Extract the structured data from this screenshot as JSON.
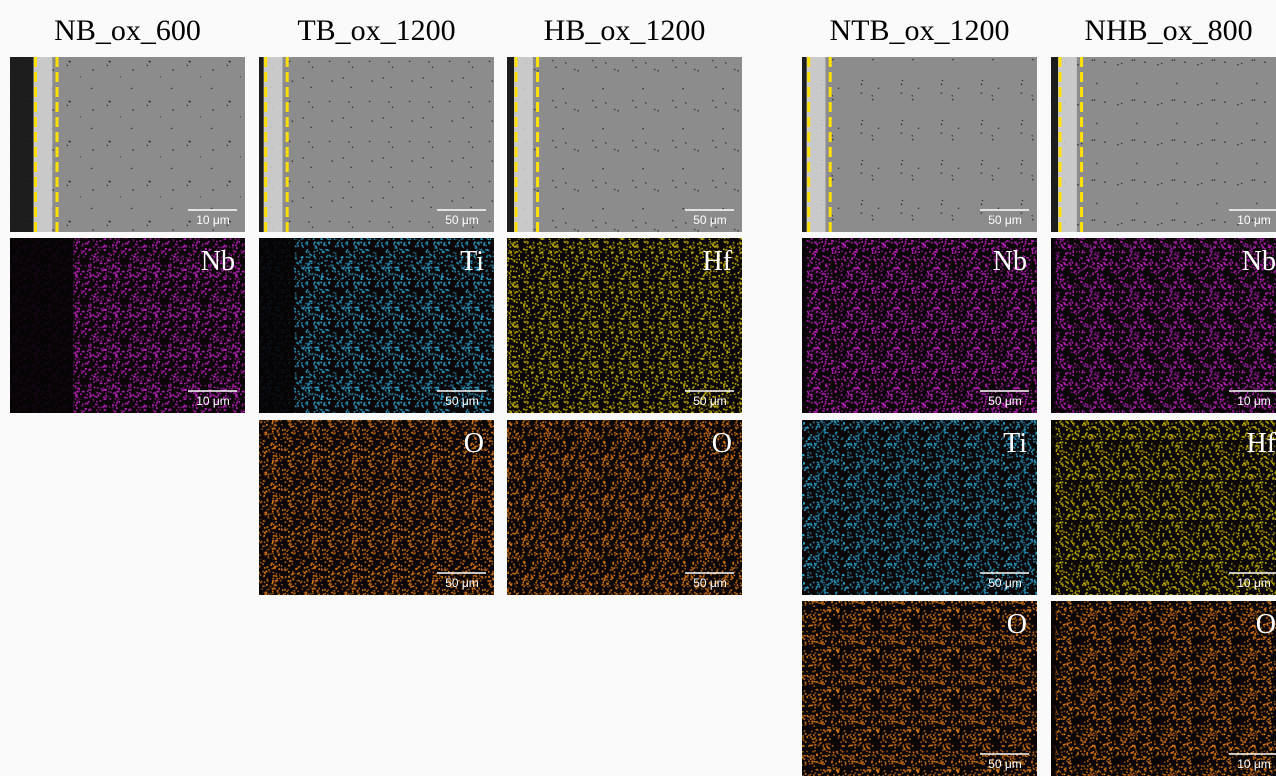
{
  "columns": [
    {
      "title": "NB_ox_600",
      "panels": [
        {
          "color": "#8c8c8c",
          "scale": "10 μm"
        },
        {
          "element": "Nb",
          "color": "#c21fc2",
          "scale": "10 μm"
        }
      ]
    },
    {
      "title": "TB_ox_1200",
      "panels": [
        {
          "color": "#8c8c8c",
          "scale": "50 μm"
        },
        {
          "element": "Ti",
          "color": "#2aa6d2",
          "scale": "50 μm"
        },
        {
          "element": "O",
          "color": "#e07a12",
          "scale": "50 μm"
        }
      ]
    },
    {
      "title": "HB_ox_1200",
      "panels": [
        {
          "color": "#8c8c8c",
          "scale": "50 μm"
        },
        {
          "element": "Hf",
          "color": "#c9b800",
          "scale": "50 μm"
        },
        {
          "element": "O",
          "color": "#e07a12",
          "scale": "50 μm"
        }
      ]
    },
    {
      "title": "NTB_ox_1200",
      "panels": [
        {
          "color": "#8c8c8c",
          "scale": "50 μm"
        },
        {
          "element": "Nb",
          "color": "#c21fc2",
          "scale": "50 μm"
        },
        {
          "element": "Ti",
          "color": "#2aa6d2",
          "scale": "50 μm"
        },
        {
          "element": "O",
          "color": "#e07a12",
          "scale": "50 μm"
        }
      ]
    },
    {
      "title": "NHB_ox_800",
      "panels": [
        {
          "color": "#8c8c8c",
          "scale": "10 μm"
        },
        {
          "element": "Nb",
          "color": "#c21fc2",
          "scale": "10 μm"
        },
        {
          "element": "Hf",
          "color": "#c9b800",
          "scale": "10 μm"
        },
        {
          "element": "O",
          "color": "#e07a12",
          "scale": "10 μm"
        }
      ]
    }
  ]
}
